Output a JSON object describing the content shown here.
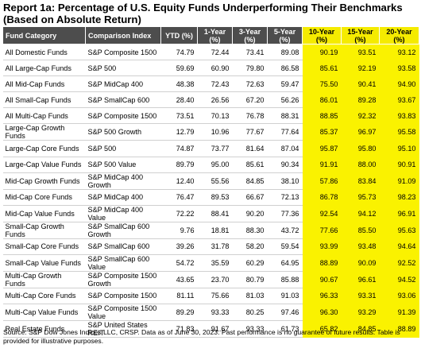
{
  "title_line1": "Report 1a: Percentage of U.S. Equity Funds Underperforming Their Benchmarks",
  "title_line2": "(Based on Absolute Return)",
  "headers": [
    "Fund Category",
    "Comparison Index",
    "YTD (%)",
    "1-Year (%)",
    "3-Year (%)",
    "5-Year (%)",
    "10-Year (%)",
    "15-Year (%)",
    "20-Year (%)"
  ],
  "highlight_color": "#faf200",
  "header_bg": "#4d4d4d",
  "rows": [
    [
      "All Domestic Funds",
      "S&P Composite 1500",
      "74.79",
      "72.44",
      "73.41",
      "89.08",
      "90.19",
      "93.51",
      "93.12"
    ],
    [
      "All Large-Cap Funds",
      "S&P 500",
      "59.69",
      "60.90",
      "79.80",
      "86.58",
      "85.61",
      "92.19",
      "93.58"
    ],
    [
      "All Mid-Cap Funds",
      "S&P MidCap 400",
      "48.38",
      "72.43",
      "72.63",
      "59.47",
      "75.50",
      "90.41",
      "94.90"
    ],
    [
      "All Small-Cap Funds",
      "S&P SmallCap 600",
      "28.40",
      "26.56",
      "67.20",
      "56.26",
      "86.01",
      "89.28",
      "93.67"
    ],
    [
      "All Multi-Cap Funds",
      "S&P Composite 1500",
      "73.51",
      "70.13",
      "76.78",
      "88.31",
      "88.85",
      "92.32",
      "93.83"
    ],
    [
      "Large-Cap Growth Funds",
      "S&P 500 Growth",
      "12.79",
      "10.96",
      "77.67",
      "77.64",
      "85.37",
      "96.97",
      "95.58"
    ],
    [
      "Large-Cap Core Funds",
      "S&P 500",
      "74.87",
      "73.77",
      "81.64",
      "87.04",
      "95.87",
      "95.80",
      "95.10"
    ],
    [
      "Large-Cap Value Funds",
      "S&P 500 Value",
      "89.79",
      "95.00",
      "85.61",
      "90.34",
      "91.91",
      "88.00",
      "90.91"
    ],
    [
      "Mid-Cap Growth Funds",
      "S&P MidCap 400 Growth",
      "12.40",
      "55.56",
      "84.85",
      "38.10",
      "57.86",
      "83.84",
      "91.09"
    ],
    [
      "Mid-Cap Core Funds",
      "S&P MidCap 400",
      "76.47",
      "89.53",
      "66.67",
      "72.13",
      "86.78",
      "95.73",
      "98.23"
    ],
    [
      "Mid-Cap Value Funds",
      "S&P MidCap 400 Value",
      "72.22",
      "88.41",
      "90.20",
      "77.36",
      "92.54",
      "94.12",
      "96.91"
    ],
    [
      "Small-Cap Growth Funds",
      "S&P SmallCap 600 Growth",
      "9.76",
      "18.81",
      "88.30",
      "43.72",
      "77.66",
      "85.50",
      "95.63"
    ],
    [
      "Small-Cap Core Funds",
      "S&P SmallCap 600",
      "39.26",
      "31.78",
      "58.20",
      "59.54",
      "93.99",
      "93.48",
      "94.64"
    ],
    [
      "Small-Cap Value Funds",
      "S&P SmallCap 600 Value",
      "54.72",
      "35.59",
      "60.29",
      "64.95",
      "88.89",
      "90.09",
      "92.52"
    ],
    [
      "Multi-Cap Growth Funds",
      "S&P Composite 1500 Growth",
      "43.65",
      "23.70",
      "80.79",
      "85.88",
      "90.67",
      "96.61",
      "94.52"
    ],
    [
      "Multi-Cap Core Funds",
      "S&P Composite 1500",
      "81.11",
      "75.66",
      "81.03",
      "91.03",
      "96.33",
      "93.31",
      "93.06"
    ],
    [
      "Multi-Cap Value Funds",
      "S&P Composite 1500 Value",
      "89.29",
      "93.33",
      "80.25",
      "97.46",
      "96.30",
      "93.29",
      "91.39"
    ],
    [
      "Real Estate Funds",
      "S&P United States REIT",
      "71.83",
      "91.67",
      "93.33",
      "61.73",
      "65.82",
      "84.85",
      "88.89"
    ]
  ],
  "footnote": "Source: S&P Dow Jones Indices LLC, CRSP.  Data as of June 30, 2023.  Past performance is no guarantee of future results.  Table is provided for illustrative purposes."
}
